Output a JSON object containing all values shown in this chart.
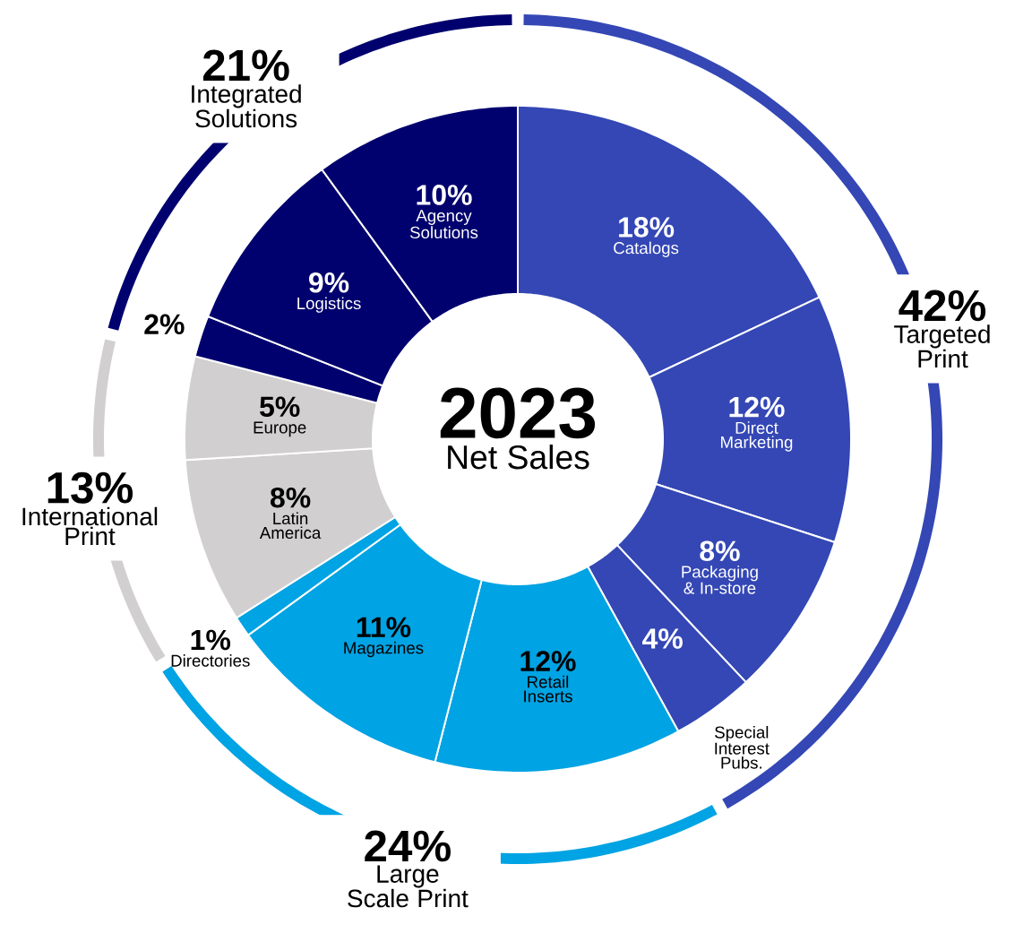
{
  "chart_data": [
    {
      "type": "donut",
      "title": "2023",
      "subtitle": "Net Sales",
      "categories": [
        "Catalogs",
        "Direct Marketing",
        "Packaging & In-store",
        "Special Interest Pubs.",
        "Retail Inserts",
        "Magazines",
        "Directories",
        "Latin America",
        "Europe",
        null,
        "Logistics",
        "Agency Solutions"
      ],
      "values": [
        18,
        12,
        8,
        4,
        12,
        11,
        1,
        8,
        5,
        2,
        9,
        10
      ],
      "value_labels": [
        "18%",
        "12%",
        "8%",
        "4%",
        "12%",
        "11%",
        "1%",
        "8%",
        "5%",
        "2%",
        "9%",
        "10%"
      ],
      "colors": [
        "#3447b5",
        "#3447b5",
        "#3447b5",
        "#3447b5",
        "#00a3e3",
        "#00a3e3",
        "#00a3e3",
        "#d1cfcf",
        "#d1cfcf",
        "#00006e",
        "#00006e",
        "#00006e"
      ]
    },
    {
      "type": "donut",
      "categories": [
        "Targeted Print",
        "Large Scale Print",
        "International Print",
        "Integrated Solutions"
      ],
      "values": [
        42,
        24,
        13,
        21
      ],
      "value_labels": [
        "42%",
        "24%",
        "13%",
        "21%"
      ],
      "colors": [
        "#3447b5",
        "#00a3e3",
        "#d1cfcf",
        "#00006e"
      ]
    }
  ]
}
